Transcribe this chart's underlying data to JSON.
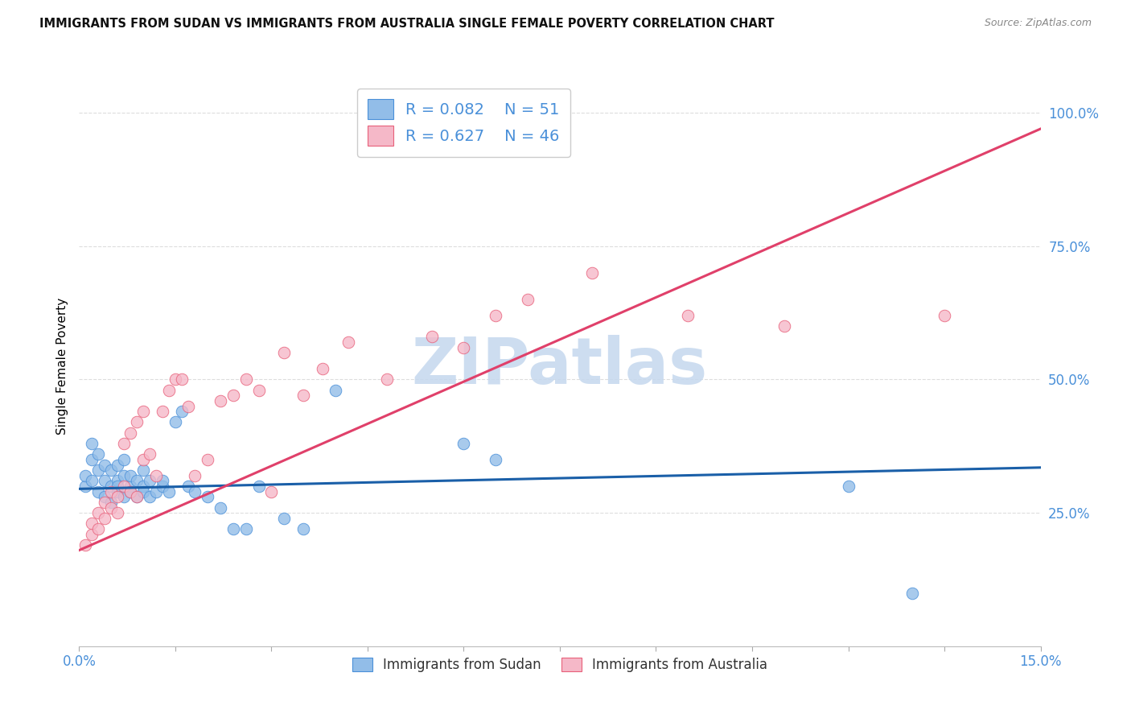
{
  "title": "IMMIGRANTS FROM SUDAN VS IMMIGRANTS FROM AUSTRALIA SINGLE FEMALE POVERTY CORRELATION CHART",
  "source": "Source: ZipAtlas.com",
  "ylabel": "Single Female Poverty",
  "xlim": [
    0.0,
    0.15
  ],
  "ylim": [
    0.0,
    1.05
  ],
  "xtick_positions": [
    0.0,
    0.015,
    0.03,
    0.045,
    0.06,
    0.075,
    0.09,
    0.105,
    0.12,
    0.135,
    0.15
  ],
  "xticklabels": [
    "0.0%",
    "",
    "",
    "",
    "",
    "",
    "",
    "",
    "",
    "",
    "15.0%"
  ],
  "ytick_positions": [
    0.25,
    0.5,
    0.75,
    1.0
  ],
  "yticklabels": [
    "25.0%",
    "50.0%",
    "75.0%",
    "100.0%"
  ],
  "legend_sudan": "R = 0.082    N = 51",
  "legend_australia": "R = 0.627    N = 46",
  "color_sudan_fill": "#92BDE8",
  "color_sudan_edge": "#4A90D9",
  "color_australia_fill": "#F5B8C8",
  "color_australia_edge": "#E8607A",
  "color_line_sudan": "#1A5FA8",
  "color_line_australia": "#E0406A",
  "color_tick": "#4A90D9",
  "color_grid": "#DDDDDD",
  "watermark_text": "ZIPatlas",
  "watermark_color": "#C5D8EE",
  "sudan_x": [
    0.001,
    0.001,
    0.002,
    0.002,
    0.002,
    0.003,
    0.003,
    0.003,
    0.004,
    0.004,
    0.004,
    0.005,
    0.005,
    0.005,
    0.006,
    0.006,
    0.006,
    0.006,
    0.007,
    0.007,
    0.007,
    0.008,
    0.008,
    0.008,
    0.009,
    0.009,
    0.01,
    0.01,
    0.01,
    0.011,
    0.011,
    0.012,
    0.013,
    0.013,
    0.014,
    0.015,
    0.016,
    0.017,
    0.018,
    0.02,
    0.022,
    0.024,
    0.026,
    0.028,
    0.032,
    0.035,
    0.04,
    0.06,
    0.065,
    0.12,
    0.13
  ],
  "sudan_y": [
    0.3,
    0.32,
    0.31,
    0.35,
    0.38,
    0.29,
    0.33,
    0.36,
    0.28,
    0.31,
    0.34,
    0.3,
    0.33,
    0.27,
    0.29,
    0.31,
    0.34,
    0.3,
    0.28,
    0.32,
    0.35,
    0.3,
    0.32,
    0.29,
    0.31,
    0.28,
    0.3,
    0.33,
    0.29,
    0.31,
    0.28,
    0.29,
    0.3,
    0.31,
    0.29,
    0.42,
    0.44,
    0.3,
    0.29,
    0.28,
    0.26,
    0.22,
    0.22,
    0.3,
    0.24,
    0.22,
    0.48,
    0.38,
    0.35,
    0.3,
    0.1
  ],
  "australia_x": [
    0.001,
    0.002,
    0.002,
    0.003,
    0.003,
    0.004,
    0.004,
    0.005,
    0.005,
    0.006,
    0.006,
    0.007,
    0.007,
    0.008,
    0.008,
    0.009,
    0.009,
    0.01,
    0.01,
    0.011,
    0.012,
    0.013,
    0.014,
    0.015,
    0.016,
    0.017,
    0.018,
    0.02,
    0.022,
    0.024,
    0.026,
    0.028,
    0.03,
    0.032,
    0.035,
    0.038,
    0.042,
    0.048,
    0.055,
    0.06,
    0.065,
    0.07,
    0.08,
    0.095,
    0.11,
    0.135
  ],
  "australia_y": [
    0.19,
    0.21,
    0.23,
    0.22,
    0.25,
    0.24,
    0.27,
    0.26,
    0.29,
    0.25,
    0.28,
    0.3,
    0.38,
    0.29,
    0.4,
    0.28,
    0.42,
    0.35,
    0.44,
    0.36,
    0.32,
    0.44,
    0.48,
    0.5,
    0.5,
    0.45,
    0.32,
    0.35,
    0.46,
    0.47,
    0.5,
    0.48,
    0.29,
    0.55,
    0.47,
    0.52,
    0.57,
    0.5,
    0.58,
    0.56,
    0.62,
    0.65,
    0.7,
    0.62,
    0.6,
    0.62
  ],
  "trend_sudan_x0": 0.0,
  "trend_sudan_x1": 0.15,
  "trend_sudan_y0": 0.295,
  "trend_sudan_y1": 0.335,
  "trend_aus_x0": 0.0,
  "trend_aus_x1": 0.15,
  "trend_aus_y0": 0.18,
  "trend_aus_y1": 0.97
}
